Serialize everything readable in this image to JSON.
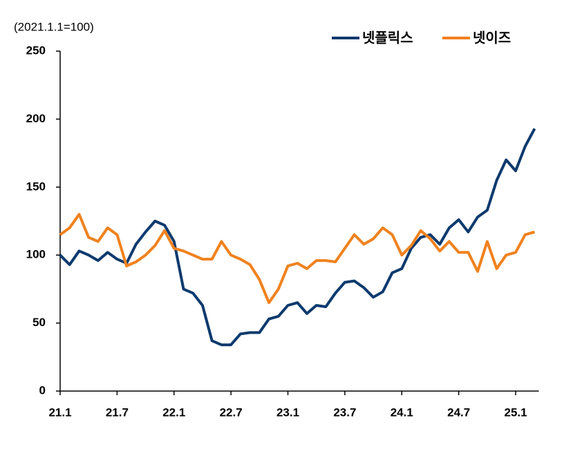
{
  "chart_data": {
    "type": "line",
    "subtitle": "(2021.1.1=100)",
    "categories": [
      "21.1",
      null,
      null,
      null,
      null,
      null,
      "21.7",
      null,
      null,
      null,
      null,
      null,
      "22.1",
      null,
      null,
      null,
      null,
      null,
      "22.7",
      null,
      null,
      null,
      null,
      null,
      "23.1",
      null,
      null,
      null,
      null,
      null,
      "23.7",
      null,
      null,
      null,
      null,
      null,
      "24.1",
      null,
      null,
      null,
      null,
      null,
      "24.7",
      null,
      null,
      null,
      null,
      null,
      "25.1",
      null,
      null
    ],
    "series": [
      {
        "name": "넷플릭스",
        "color": "#0d3a6e",
        "values": [
          100,
          93,
          103,
          100,
          96,
          102,
          97,
          94,
          108,
          117,
          125,
          122,
          110,
          75,
          72,
          63,
          37,
          34,
          34,
          42,
          43,
          43,
          53,
          55,
          63,
          65,
          57,
          63,
          62,
          72,
          80,
          81,
          76,
          69,
          73,
          87,
          90,
          105,
          113,
          115,
          108,
          120,
          126,
          117,
          128,
          133,
          155,
          170,
          162,
          180,
          193
        ]
      },
      {
        "name": "넷이즈",
        "color": "#f0821e",
        "values": [
          115,
          120,
          130,
          113,
          110,
          120,
          115,
          92,
          95,
          100,
          107,
          118,
          105,
          103,
          100,
          97,
          97,
          110,
          100,
          97,
          93,
          82,
          65,
          75,
          92,
          94,
          90,
          96,
          96,
          95,
          105,
          115,
          108,
          112,
          120,
          115,
          100,
          107,
          118,
          112,
          103,
          110,
          102,
          102,
          88,
          110,
          90,
          100,
          102,
          115,
          117
        ]
      }
    ],
    "ylim": [
      0,
      250
    ],
    "yticks": [
      0,
      50,
      100,
      150,
      200,
      250
    ],
    "legend": "top-right"
  }
}
